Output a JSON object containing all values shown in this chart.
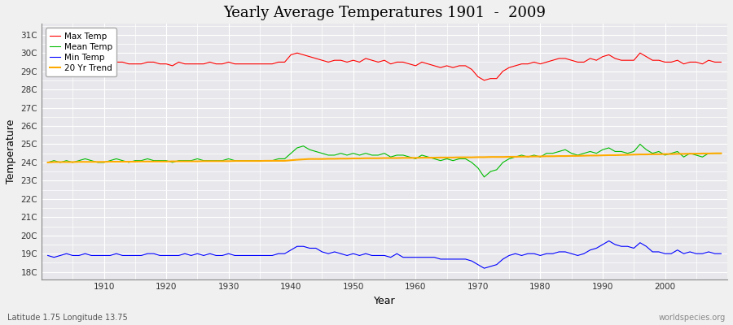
{
  "title": "Yearly Average Temperatures 1901  -  2009",
  "xlabel": "Year",
  "ylabel": "Temperature",
  "subtitle_left": "Latitude 1.75 Longitude 13.75",
  "subtitle_right": "worldspecies.org",
  "years_start": 1901,
  "years_end": 2009,
  "yticks": [
    18,
    19,
    20,
    21,
    22,
    23,
    24,
    25,
    26,
    27,
    28,
    29,
    30,
    31
  ],
  "ytick_labels": [
    "18C",
    "19C",
    "20C",
    "21C",
    "22C",
    "23C",
    "24C",
    "25C",
    "26C",
    "27C",
    "28C",
    "29C",
    "30C",
    "31C"
  ],
  "ylim": [
    17.6,
    31.6
  ],
  "xlim": [
    1900,
    2010
  ],
  "bg_color": "#f0f0f0",
  "plot_bg_color": "#e8e8ec",
  "grid_color": "#ffffff",
  "max_temp_color": "#ff0000",
  "mean_temp_color": "#00bb00",
  "min_temp_color": "#0000ff",
  "trend_color": "#ffaa00",
  "legend_labels": [
    "Max Temp",
    "Mean Temp",
    "Min Temp",
    "20 Yr Trend"
  ],
  "max_temp": [
    29.2,
    29.3,
    29.2,
    29.4,
    29.4,
    29.5,
    29.4,
    29.3,
    29.3,
    29.4,
    29.2,
    29.5,
    29.5,
    29.4,
    29.4,
    29.4,
    29.5,
    29.5,
    29.4,
    29.4,
    29.3,
    29.5,
    29.4,
    29.4,
    29.4,
    29.4,
    29.5,
    29.4,
    29.4,
    29.5,
    29.4,
    29.4,
    29.4,
    29.4,
    29.4,
    29.4,
    29.4,
    29.5,
    29.5,
    29.9,
    30.0,
    29.9,
    29.8,
    29.7,
    29.6,
    29.5,
    29.6,
    29.6,
    29.5,
    29.6,
    29.5,
    29.7,
    29.6,
    29.5,
    29.6,
    29.4,
    29.5,
    29.5,
    29.4,
    29.3,
    29.5,
    29.4,
    29.3,
    29.2,
    29.3,
    29.2,
    29.3,
    29.3,
    29.1,
    28.7,
    28.5,
    28.6,
    28.6,
    29.0,
    29.2,
    29.3,
    29.4,
    29.4,
    29.5,
    29.4,
    29.5,
    29.6,
    29.7,
    29.7,
    29.6,
    29.5,
    29.5,
    29.7,
    29.6,
    29.8,
    29.9,
    29.7,
    29.6,
    29.6,
    29.6,
    30.0,
    29.8,
    29.6,
    29.6,
    29.5,
    29.5,
    29.6,
    29.4,
    29.5,
    29.5,
    29.4,
    29.6,
    29.5,
    29.5
  ],
  "mean_temp": [
    24.0,
    24.1,
    24.0,
    24.1,
    24.0,
    24.1,
    24.2,
    24.1,
    24.0,
    24.0,
    24.1,
    24.2,
    24.1,
    24.0,
    24.1,
    24.1,
    24.2,
    24.1,
    24.1,
    24.1,
    24.0,
    24.1,
    24.1,
    24.1,
    24.2,
    24.1,
    24.1,
    24.1,
    24.1,
    24.2,
    24.1,
    24.1,
    24.1,
    24.1,
    24.1,
    24.1,
    24.1,
    24.2,
    24.2,
    24.5,
    24.8,
    24.9,
    24.7,
    24.6,
    24.5,
    24.4,
    24.4,
    24.5,
    24.4,
    24.5,
    24.4,
    24.5,
    24.4,
    24.4,
    24.5,
    24.3,
    24.4,
    24.4,
    24.3,
    24.2,
    24.4,
    24.3,
    24.2,
    24.1,
    24.2,
    24.1,
    24.2,
    24.2,
    24.0,
    23.7,
    23.2,
    23.5,
    23.6,
    24.0,
    24.2,
    24.3,
    24.4,
    24.3,
    24.4,
    24.3,
    24.5,
    24.5,
    24.6,
    24.7,
    24.5,
    24.4,
    24.5,
    24.6,
    24.5,
    24.7,
    24.8,
    24.6,
    24.6,
    24.5,
    24.6,
    25.0,
    24.7,
    24.5,
    24.6,
    24.4,
    24.5,
    24.6,
    24.3,
    24.5,
    24.4,
    24.3,
    24.5,
    24.5,
    24.5
  ],
  "min_temp": [
    18.9,
    18.8,
    18.9,
    19.0,
    18.9,
    18.9,
    19.0,
    18.9,
    18.9,
    18.9,
    18.9,
    19.0,
    18.9,
    18.9,
    18.9,
    18.9,
    19.0,
    19.0,
    18.9,
    18.9,
    18.9,
    18.9,
    19.0,
    18.9,
    19.0,
    18.9,
    19.0,
    18.9,
    18.9,
    19.0,
    18.9,
    18.9,
    18.9,
    18.9,
    18.9,
    18.9,
    18.9,
    19.0,
    19.0,
    19.2,
    19.4,
    19.4,
    19.3,
    19.3,
    19.1,
    19.0,
    19.1,
    19.0,
    18.9,
    19.0,
    18.9,
    19.0,
    18.9,
    18.9,
    18.9,
    18.8,
    19.0,
    18.8,
    18.8,
    18.8,
    18.8,
    18.8,
    18.8,
    18.7,
    18.7,
    18.7,
    18.7,
    18.7,
    18.6,
    18.4,
    18.2,
    18.3,
    18.4,
    18.7,
    18.9,
    19.0,
    18.9,
    19.0,
    19.0,
    18.9,
    19.0,
    19.0,
    19.1,
    19.1,
    19.0,
    18.9,
    19.0,
    19.2,
    19.3,
    19.5,
    19.7,
    19.5,
    19.4,
    19.4,
    19.3,
    19.6,
    19.4,
    19.1,
    19.1,
    19.0,
    19.0,
    19.2,
    19.0,
    19.1,
    19.0,
    19.0,
    19.1,
    19.0,
    19.0
  ],
  "trend": [
    24.0,
    24.02,
    24.02,
    24.02,
    24.02,
    24.03,
    24.03,
    24.03,
    24.03,
    24.03,
    24.04,
    24.04,
    24.04,
    24.04,
    24.04,
    24.05,
    24.05,
    24.05,
    24.05,
    24.05,
    24.06,
    24.06,
    24.06,
    24.06,
    24.06,
    24.07,
    24.07,
    24.07,
    24.07,
    24.07,
    24.08,
    24.08,
    24.08,
    24.08,
    24.08,
    24.09,
    24.09,
    24.09,
    24.09,
    24.12,
    24.15,
    24.17,
    24.19,
    24.19,
    24.19,
    24.2,
    24.2,
    24.21,
    24.21,
    24.22,
    24.22,
    24.23,
    24.23,
    24.23,
    24.24,
    24.24,
    24.24,
    24.25,
    24.25,
    24.25,
    24.26,
    24.26,
    24.26,
    24.27,
    24.27,
    24.27,
    24.28,
    24.28,
    24.28,
    24.29,
    24.29,
    24.3,
    24.3,
    24.3,
    24.31,
    24.31,
    24.32,
    24.32,
    24.33,
    24.33,
    24.34,
    24.34,
    24.35,
    24.35,
    24.36,
    24.36,
    24.37,
    24.38,
    24.38,
    24.39,
    24.4,
    24.4,
    24.41,
    24.42,
    24.43,
    24.44,
    24.44,
    24.45,
    24.45,
    24.46,
    24.46,
    24.47,
    24.47,
    24.48,
    24.48,
    24.49,
    24.49,
    24.5,
    24.5
  ]
}
